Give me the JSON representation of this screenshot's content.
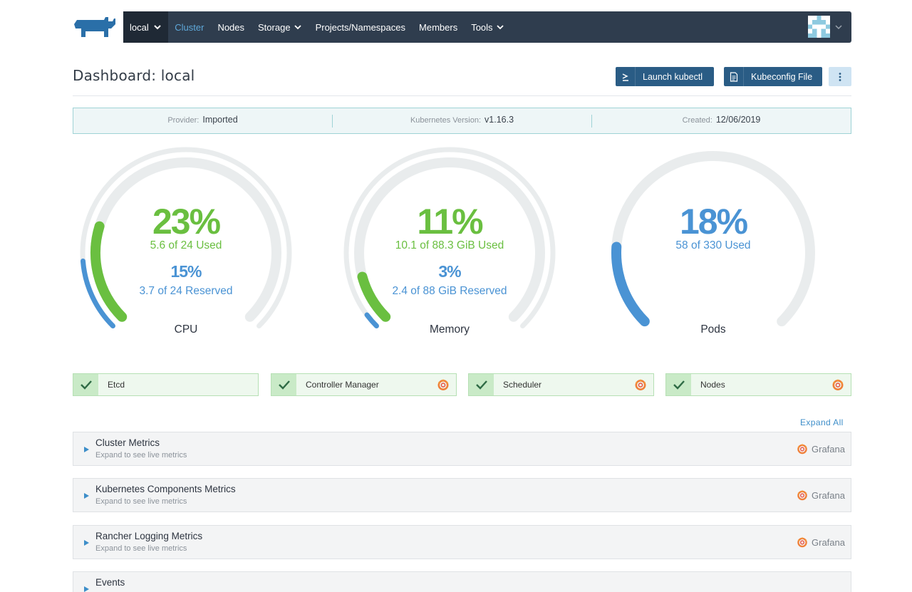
{
  "nav": {
    "cluster": "local",
    "items": [
      "Cluster",
      "Nodes",
      "Storage",
      "Projects/Namespaces",
      "Members",
      "Tools"
    ]
  },
  "header": {
    "title": "Dashboard: local",
    "launch_kubectl": "Launch kubectl",
    "kubeconfig_file": "Kubeconfig File"
  },
  "info": {
    "provider_label": "Provider:",
    "provider": "Imported",
    "version_label": "Kubernetes Version:",
    "version": "v1.16.3",
    "created_label": "Created:",
    "created": "12/06/2019"
  },
  "gauges": {
    "cpu": {
      "used_pct": "23%",
      "used_text": "5.6 of 24 Used",
      "reserved_pct": "15%",
      "reserved_text": "3.7 of 24 Reserved",
      "label": "CPU",
      "used_fraction": 0.23,
      "reserved_fraction": 0.15
    },
    "memory": {
      "used_pct": "11%",
      "used_text": "10.1 of 88.3 GiB Used",
      "reserved_pct": "3%",
      "reserved_text": "2.4 of 88 GiB Reserved",
      "label": "Memory",
      "used_fraction": 0.11,
      "reserved_fraction": 0.03
    },
    "pods": {
      "used_pct": "18%",
      "used_text": "58 of 330 Used",
      "label": "Pods",
      "used_fraction": 0.18
    }
  },
  "components": [
    "Etcd",
    "Controller Manager",
    "Scheduler",
    "Nodes"
  ],
  "expand_all": "Expand All",
  "panels": [
    {
      "title": "Cluster Metrics",
      "subtitle": "Expand to see live metrics",
      "link": "Grafana"
    },
    {
      "title": "Kubernetes Components Metrics",
      "subtitle": "Expand to see live metrics",
      "link": "Grafana"
    },
    {
      "title": "Rancher Logging Metrics",
      "subtitle": "Expand to see live metrics",
      "link": "Grafana"
    },
    {
      "title": "Events",
      "subtitle": "",
      "link": ""
    }
  ],
  "colors": {
    "navbar": "#2f3d4e",
    "used": "#6abf40",
    "reserved": "#4a93d4",
    "button": "#2a5c85",
    "track": "#e9eced"
  }
}
